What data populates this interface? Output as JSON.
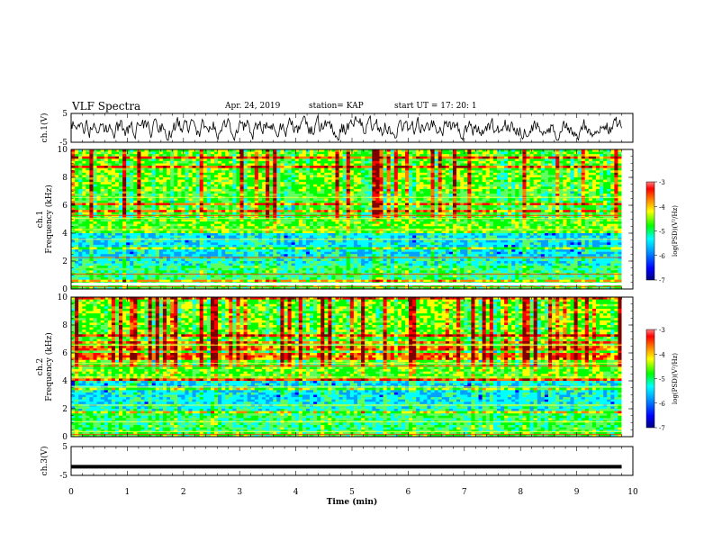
{
  "header": {
    "title": "VLF Spectra",
    "date": "Apr. 24, 2019",
    "station": "station= KAP",
    "start": "start  UT =   17: 20: 1"
  },
  "chart_data": [
    {
      "type": "line",
      "panel": "ch1-waveform",
      "ylabel": "ch.1(V)",
      "ylim": [
        -5,
        5
      ],
      "yticks": [
        "5",
        "-5"
      ],
      "xlim": [
        0,
        10
      ],
      "description_values": "noisy waveform between about -4 and +4 V, centered near 0 V, spanning 0 to 9.8 min"
    },
    {
      "type": "heatmap",
      "panel": "ch1-spectrogram",
      "ylabel": "ch.1\nFrequency (kHz)",
      "ylim": [
        0,
        10
      ],
      "yticks": [
        "0",
        "2",
        "4",
        "6",
        "8",
        "10"
      ],
      "xlim": [
        0,
        9.8
      ],
      "colorbar": {
        "label": "log(PSD)(V²/Hz)",
        "range": [
          -7,
          -3
        ],
        "ticks": [
          "-3",
          "-4",
          "-5",
          "-6",
          "-7"
        ]
      }
    },
    {
      "type": "heatmap",
      "panel": "ch2-spectrogram",
      "ylabel": "ch.2\nFrequency (kHz)",
      "ylim": [
        0,
        10
      ],
      "yticks": [
        "0",
        "2",
        "4",
        "6",
        "8",
        "10"
      ],
      "xlim": [
        0,
        9.8
      ],
      "colorbar": {
        "label": "log(PSD)(V²/Hz)",
        "range": [
          -7,
          -3
        ],
        "ticks": [
          "-3",
          "-4",
          "-5",
          "-6",
          "-7"
        ]
      }
    },
    {
      "type": "line",
      "panel": "ch3-waveform",
      "ylabel": "ch.3(V)",
      "ylim": [
        -5,
        5
      ],
      "yticks": [
        "5",
        "-5"
      ],
      "xlim": [
        0,
        10
      ],
      "values_constant": -2
    }
  ],
  "xaxis": {
    "label": "Time  (min)",
    "ticks": [
      "0",
      "1",
      "2",
      "3",
      "4",
      "5",
      "6",
      "7",
      "8",
      "9",
      "10"
    ],
    "range": [
      0,
      10
    ]
  },
  "colors": {
    "colormap": [
      "#00007f",
      "#0000ff",
      "#00a0ff",
      "#00ffff",
      "#5fff5f",
      "#00ff00",
      "#ffff00",
      "#ff8000",
      "#ff0000",
      "#7f0000"
    ]
  }
}
